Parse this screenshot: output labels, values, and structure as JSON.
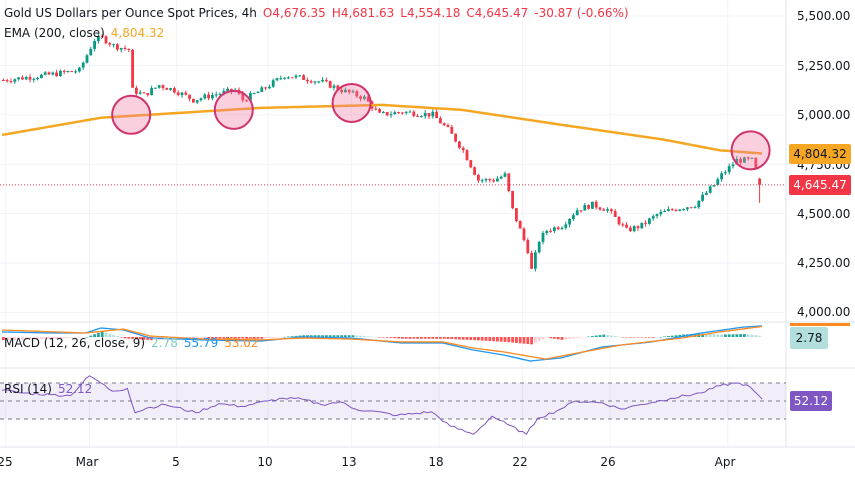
{
  "header": {
    "symbol": "Gold US Dollars per Ounce Spot Prices, 4h",
    "open": "O4,676.35",
    "high": "H4,681.63",
    "low": "L4,554.18",
    "close": "C4,645.47",
    "change": "-30.87 (-0.66%)",
    "ema_label": "EMA (200, close)",
    "ema_value": "4,804.32",
    "macd_label": "MACD (12, 26, close, 9)",
    "macd_hist": "2.78",
    "macd_value": "55.79",
    "macd_signal": "53.02",
    "rsi_label": "RSI (14)",
    "rsi_value": "52.12"
  },
  "badges": {
    "ema": "4,804.32",
    "last": "4,645.47",
    "macd": "2.78",
    "rsi": "52.12"
  },
  "colors": {
    "up": "#089981",
    "down": "#f23645",
    "ema": "#f5a623",
    "macd": "#2196f3",
    "signal": "#ff8a1f",
    "rsi": "#7e57c2",
    "highlight": "#d0336e"
  },
  "chart_data": {
    "type": "candlestick",
    "title": "Gold US Dollars per Ounce Spot Prices, 4h",
    "bars": 200,
    "ylim": [
      3960,
      5560
    ],
    "y_ticks": [
      "5,500.00",
      "5,250.00",
      "5,000.00",
      "4,750.00",
      "4,500.00",
      "4,250.00",
      "4,000.00"
    ],
    "y_tick_values": [
      5500,
      5250,
      5000,
      4750,
      4500,
      4250,
      4000
    ],
    "x_ticks": [
      {
        "label": "25",
        "bar": 1
      },
      {
        "label": "Mar",
        "bar": 23
      },
      {
        "label": "5",
        "bar": 46
      },
      {
        "label": "10",
        "bar": 70
      },
      {
        "label": "13",
        "bar": 92
      },
      {
        "label": "18",
        "bar": 115
      },
      {
        "label": "22",
        "bar": 137
      },
      {
        "label": "26",
        "bar": 160
      },
      {
        "label": "Apr",
        "bar": 191
      }
    ],
    "close_path": [
      [
        0,
        5176
      ],
      [
        11,
        5200
      ],
      [
        20,
        5225
      ],
      [
        24,
        5380
      ],
      [
        26,
        5390
      ],
      [
        29,
        5350
      ],
      [
        33,
        5330
      ],
      [
        34,
        5125
      ],
      [
        37,
        5100
      ],
      [
        41,
        5150
      ],
      [
        45,
        5125
      ],
      [
        50,
        5075
      ],
      [
        55,
        5100
      ],
      [
        61,
        5125
      ],
      [
        63,
        5075
      ],
      [
        68,
        5125
      ],
      [
        74,
        5200
      ],
      [
        79,
        5185
      ],
      [
        84,
        5165
      ],
      [
        89,
        5125
      ],
      [
        95,
        5085
      ],
      [
        99,
        5000
      ],
      [
        105,
        5015
      ],
      [
        113,
        5000
      ],
      [
        117,
        4925
      ],
      [
        121,
        4820
      ],
      [
        125,
        4670
      ],
      [
        129,
        4670
      ],
      [
        132,
        4695
      ],
      [
        134,
        4520
      ],
      [
        138,
        4315
      ],
      [
        139,
        4215
      ],
      [
        141,
        4365
      ],
      [
        143,
        4415
      ],
      [
        147,
        4440
      ],
      [
        151,
        4520
      ],
      [
        155,
        4545
      ],
      [
        159,
        4520
      ],
      [
        164,
        4415
      ],
      [
        168,
        4440
      ],
      [
        172,
        4495
      ],
      [
        176,
        4520
      ],
      [
        182,
        4545
      ],
      [
        187,
        4645
      ],
      [
        189,
        4695
      ],
      [
        193,
        4770
      ],
      [
        197,
        4770
      ],
      [
        199,
        4676.35
      ]
    ],
    "last_bar": {
      "open": 4676.35,
      "high": 4681.63,
      "low": 4554.18,
      "close": 4645.47
    },
    "ema200": [
      [
        0,
        4898
      ],
      [
        26,
        4985
      ],
      [
        68,
        5035
      ],
      [
        100,
        5050
      ],
      [
        121,
        5025
      ],
      [
        147,
        4950
      ],
      [
        174,
        4875
      ],
      [
        189,
        4820
      ],
      [
        200,
        4804.32
      ]
    ],
    "highlights": [
      {
        "bar": 34,
        "price": 5000
      },
      {
        "bar": 61,
        "price": 5025
      },
      {
        "bar": 92,
        "price": 5060
      },
      {
        "bar": 197,
        "price": 4820
      }
    ],
    "macd": {
      "macd": [
        [
          0,
          28
        ],
        [
          13,
          23
        ],
        [
          22,
          23
        ],
        [
          26,
          46
        ],
        [
          32,
          37
        ],
        [
          39,
          0
        ],
        [
          53,
          -9
        ],
        [
          68,
          -14
        ],
        [
          79,
          5
        ],
        [
          92,
          0
        ],
        [
          105,
          -23
        ],
        [
          116,
          -23
        ],
        [
          124,
          -55
        ],
        [
          132,
          -78
        ],
        [
          139,
          -106
        ],
        [
          147,
          -92
        ],
        [
          158,
          -41
        ],
        [
          171,
          -18
        ],
        [
          184,
          23
        ],
        [
          195,
          50
        ],
        [
          200,
          55.79
        ]
      ],
      "signal": [
        [
          0,
          37
        ],
        [
          22,
          23
        ],
        [
          32,
          41
        ],
        [
          39,
          9
        ],
        [
          53,
          -5
        ],
        [
          68,
          -9
        ],
        [
          79,
          0
        ],
        [
          92,
          -5
        ],
        [
          105,
          -18
        ],
        [
          116,
          -18
        ],
        [
          124,
          -46
        ],
        [
          132,
          -64
        ],
        [
          143,
          -97
        ],
        [
          153,
          -64
        ],
        [
          163,
          -32
        ],
        [
          179,
          0
        ],
        [
          189,
          28
        ],
        [
          200,
          53.02
        ]
      ],
      "ylim": [
        -120,
        70
      ]
    },
    "rsi": {
      "values": [
        [
          0,
          62
        ],
        [
          5,
          59
        ],
        [
          13,
          57
        ],
        [
          18,
          56
        ],
        [
          23,
          78
        ],
        [
          25,
          73
        ],
        [
          29,
          61
        ],
        [
          33,
          64
        ],
        [
          35,
          37
        ],
        [
          38,
          42
        ],
        [
          43,
          46
        ],
        [
          51,
          37
        ],
        [
          57,
          47
        ],
        [
          63,
          44
        ],
        [
          70,
          50
        ],
        [
          74,
          53
        ],
        [
          79,
          52
        ],
        [
          84,
          46
        ],
        [
          89,
          49
        ],
        [
          93,
          41
        ],
        [
          97,
          39
        ],
        [
          104,
          34
        ],
        [
          113,
          38
        ],
        [
          118,
          22
        ],
        [
          124,
          13
        ],
        [
          129,
          33
        ],
        [
          133,
          24
        ],
        [
          138,
          13
        ],
        [
          141,
          31
        ],
        [
          146,
          39
        ],
        [
          151,
          50
        ],
        [
          158,
          48
        ],
        [
          163,
          41
        ],
        [
          168,
          46
        ],
        [
          176,
          53
        ],
        [
          184,
          59
        ],
        [
          189,
          67
        ],
        [
          193,
          70
        ],
        [
          196,
          68
        ],
        [
          200,
          52.12
        ]
      ],
      "levels": [
        70,
        50,
        30
      ],
      "ylim": [
        0,
        100
      ]
    }
  }
}
